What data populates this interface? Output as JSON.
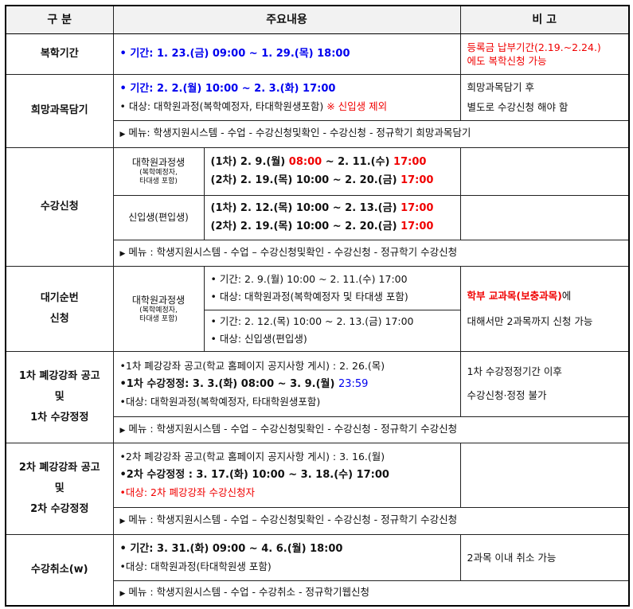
{
  "header": [
    "구  분",
    "주요내용",
    "비  고"
  ],
  "colors": {
    "blue": "#0000ee",
    "red": "#f00000"
  },
  "rows": {
    "reinstate": {
      "label": [
        "복학기간"
      ],
      "main": [
        [
          {
            "t": "• 기간: 1. 23.(금) 09:00 ~  1. 29.(목) 18:00",
            "s": "b blue big"
          }
        ]
      ],
      "remark": [
        [
          {
            "t": "등록금 납부기간(2.19.~2.24.)",
            "s": "red"
          }
        ],
        [
          {
            "t": "에도 복학신청 가능",
            "s": "red"
          }
        ]
      ]
    },
    "wishlist": {
      "label": [
        "희망과목담기"
      ],
      "main": [
        [
          {
            "t": "• 기간: 2. 2.(월) 10:00 ~ 2. 3.(화) 17:00",
            "s": "b blue big"
          }
        ],
        [
          {
            "t": "• 대상: 대학원과정(복학예정자, 타대학원생포함) ",
            "s": ""
          },
          {
            "t": "※ 신입생 제외",
            "s": "red"
          }
        ]
      ],
      "remark": [
        [
          {
            "t": "희망과목담기 후",
            "s": ""
          }
        ],
        [
          {
            "t": "별도로 수강신청 해야 함",
            "s": ""
          }
        ]
      ],
      "menu": "메뉴: 학생지원시스템 - 수업 - 수강신청및확인 - 수강신청 - 정규학기 희망과목담기"
    },
    "registration": {
      "label": [
        "수강신청"
      ],
      "sub1": {
        "label": "대학원과정생",
        "note": [
          "(복학예정자,",
          "타대생 포함)"
        ]
      },
      "main1": [
        [
          {
            "t": "(1차) 2. 9.(월) ",
            "s": "b big"
          },
          {
            "t": "08:00",
            "s": "b big red"
          },
          {
            "t": " ~ 2. 11.(수) ",
            "s": "b big"
          },
          {
            "t": "17:00",
            "s": "b big red"
          }
        ],
        [
          {
            "t": "(2차) 2. 19.(목) 10:00 ~ 2. 20.(금) ",
            "s": "b big"
          },
          {
            "t": "17:00",
            "s": "b big red"
          }
        ]
      ],
      "sub2": {
        "label": "신입생(편입생)"
      },
      "main2": [
        [
          {
            "t": "(1차) 2. 12.(목) 10:00 ~ 2. 13.(금) ",
            "s": "b big"
          },
          {
            "t": "17:00",
            "s": "b big red"
          }
        ],
        [
          {
            "t": "(2차) 2. 19.(목) 10:00 ~ 2. 20.(금) ",
            "s": "b big"
          },
          {
            "t": "17:00",
            "s": "b big red"
          }
        ]
      ],
      "menu": "메뉴 : 학생지원시스템 - 수업  – 수강신청및확인 - 수강신청 - 정규학기 수강신청"
    },
    "waitlist": {
      "label": [
        "대기순번",
        "신청"
      ],
      "sub": {
        "label": "대학원과정생",
        "note": [
          "(복학예정자,",
          "타대생 포함)"
        ]
      },
      "mainA": [
        [
          {
            "t": "• 기간: 2. 9.(월) 10:00 ~ 2. 11.(수) 17:00",
            "s": ""
          }
        ],
        [
          {
            "t": "• 대상: 대학원과정(복학예정자 및 타대생 포함)",
            "s": ""
          }
        ]
      ],
      "mainB": [
        [
          {
            "t": "• 기간: 2. 12.(목) 10:00 ~ 2. 13.(금) 17:00",
            "s": ""
          }
        ],
        [
          {
            "t": "• 대상: 신입생(편입생)",
            "s": ""
          }
        ]
      ],
      "remark": [
        [
          {
            "t": "학부 교과목(보충과목)",
            "s": "b red"
          },
          {
            "t": "에",
            "s": ""
          }
        ],
        [
          {
            "t": "대해서만 2과목까지 신청 가능",
            "s": ""
          }
        ]
      ]
    },
    "change1": {
      "label": [
        "1차 폐강강좌 공고",
        "및",
        "1차 수강정정"
      ],
      "main": [
        [
          {
            "t": "•1차 폐강강좌 공고(학교 홈페이지 공지사항 게시) : 2. 26.(목)",
            "s": ""
          }
        ],
        [
          {
            "t": "•1차 수강정정: 3. 3.(화) 08:00 ~ 3. 9.(월) ",
            "s": "b big"
          },
          {
            "t": "23:59",
            "s": "blue big"
          }
        ],
        [
          {
            "t": "•대상: 대학원과정(복학예정자, 타대학원생포함)",
            "s": ""
          }
        ]
      ],
      "remark": [
        [
          {
            "t": "1차 수강정정기간 이후",
            "s": ""
          }
        ],
        [
          {
            "t": "수강신청·정정 불가",
            "s": ""
          }
        ]
      ],
      "menu": "메뉴 : 학생지원시스템 - 수업  – 수강신청및확인 - 수강신청 - 정규학기 수강신청"
    },
    "change2": {
      "label": [
        "2차 폐강강좌 공고",
        "및",
        "2차 수강정정"
      ],
      "main": [
        [
          {
            "t": "•2차 폐강강좌 공고(학교 홈페이지 공지사항 게시) : 3. 16.(월)",
            "s": ""
          }
        ],
        [
          {
            "t": "•2차 수강정정 : 3. 17.(화) 10:00 ~ 3. 18.(수) 17:00",
            "s": "b big"
          }
        ],
        [
          {
            "t": "•대상: 2차 폐강강좌 수강신청자",
            "s": "red"
          }
        ]
      ],
      "remark": [],
      "menu": "메뉴 : 학생지원시스템 - 수업  – 수강신청및확인 - 수강신청 - 정규학기 수강신청"
    },
    "withdraw": {
      "label": [
        "수강취소(w)"
      ],
      "main": [
        [
          {
            "t": "• 기간: 3. 31.(화) 09:00 ~ 4. 6.(월) 18:00",
            "s": "b big"
          }
        ],
        [
          {
            "t": "•대상: 대학원과정(타대학원생 포함)",
            "s": ""
          }
        ]
      ],
      "remark": [
        [
          {
            "t": "2과목 이내 취소 가능",
            "s": ""
          }
        ]
      ],
      "menu": "메뉴 : 학생지원시스템 - 수업 - 수강취소 - 정규학기웹신청"
    }
  }
}
